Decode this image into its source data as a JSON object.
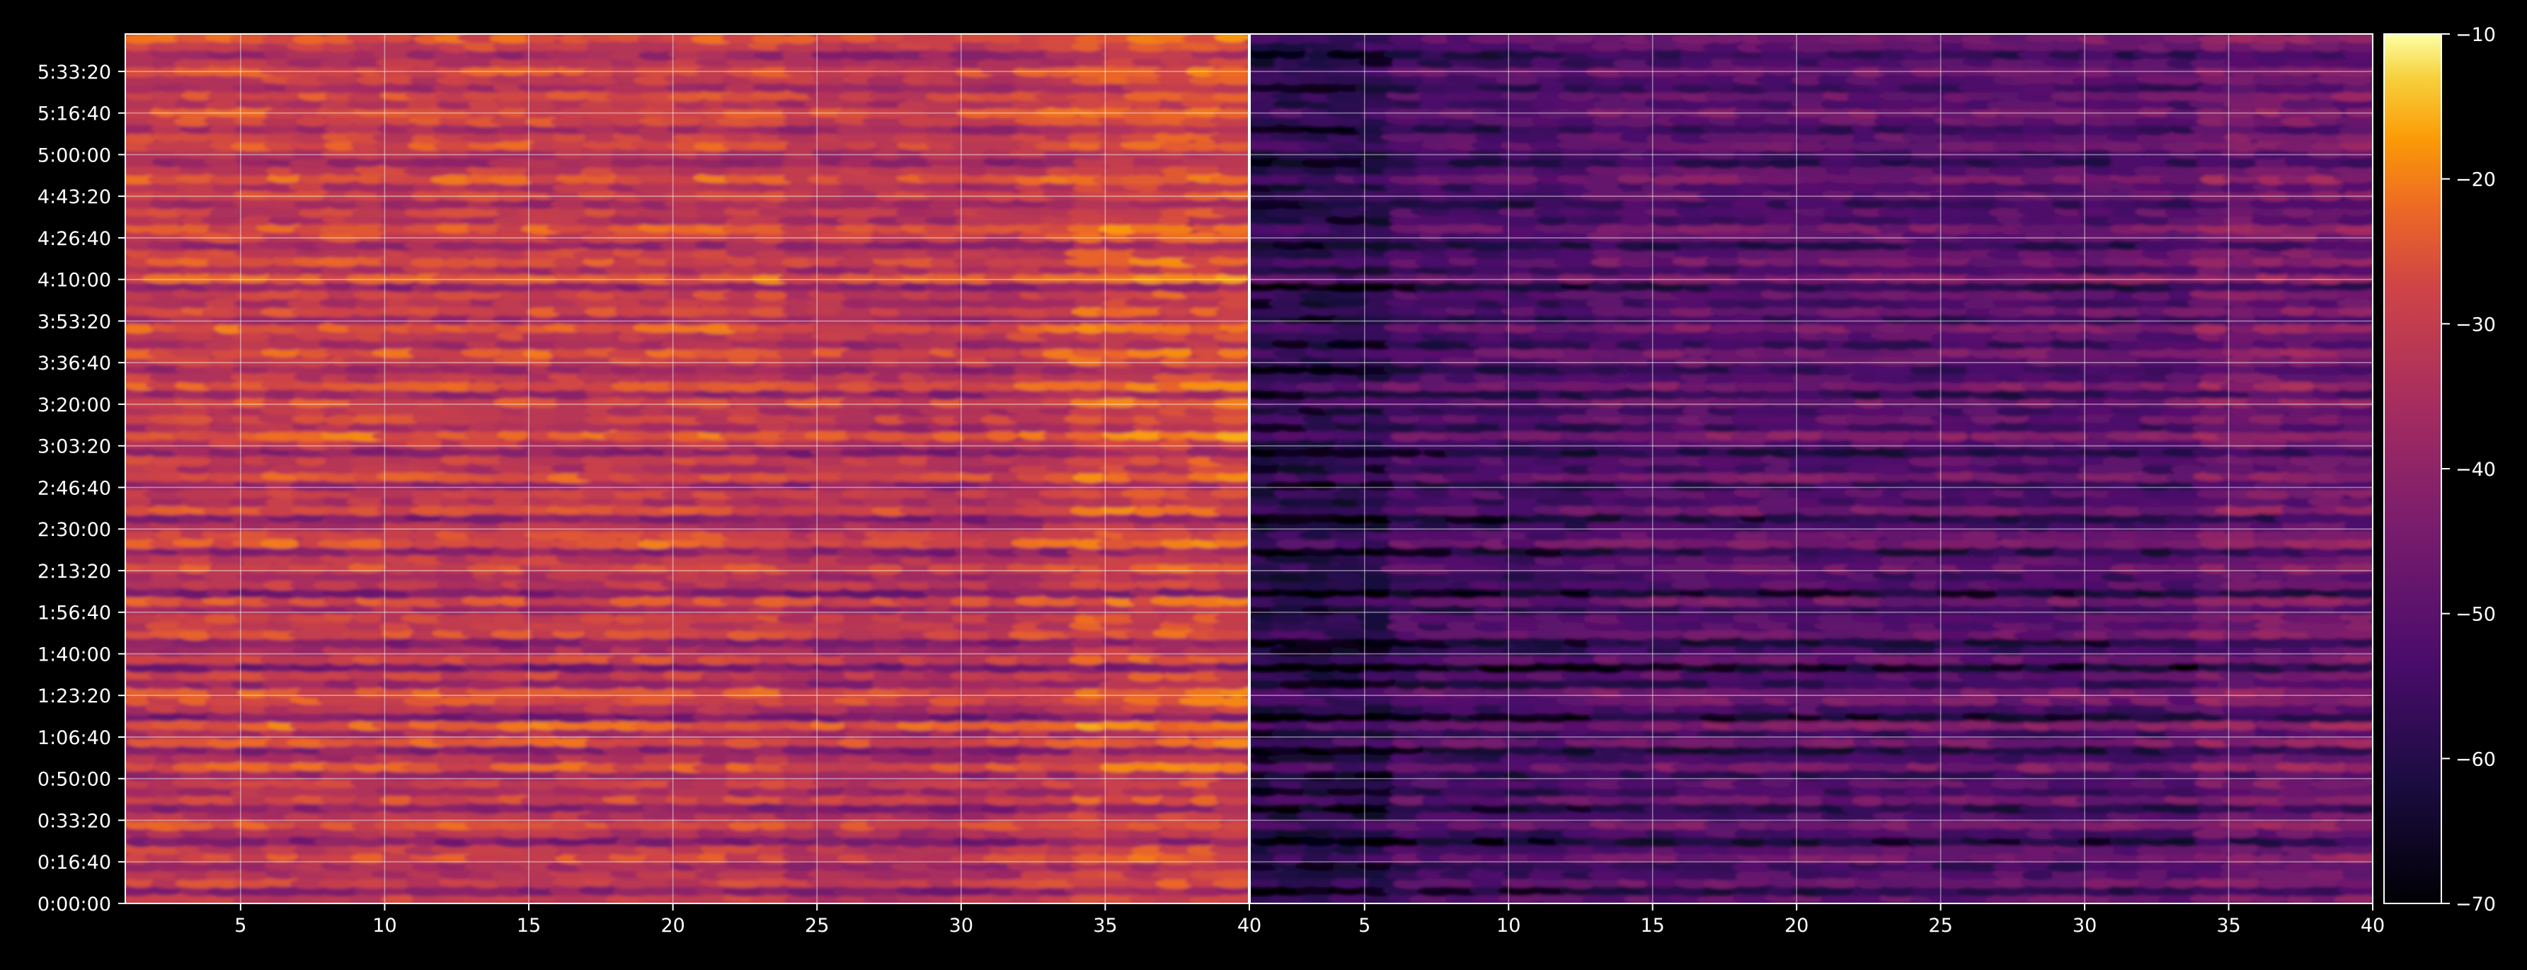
{
  "chart_data": {
    "type": "heatmap",
    "panels": [
      {
        "name": "left",
        "xlim": [
          1,
          40
        ],
        "xticks": [
          "5",
          "10",
          "15",
          "20",
          "25",
          "30",
          "35",
          "40"
        ],
        "tick_values": [
          5,
          10,
          15,
          20,
          25,
          30,
          35,
          40
        ],
        "mean_level_db": -31,
        "rows_db": [
          -30,
          -41,
          -29,
          -33,
          -36,
          -27,
          -30,
          -43,
          -34,
          -26,
          -33,
          -41,
          -28,
          -35,
          -30,
          -37,
          -25,
          -34,
          -41,
          -25,
          -35,
          -23,
          -44,
          -33,
          -26,
          -25,
          -38,
          -30,
          -45,
          -28,
          -35,
          -42,
          -27,
          -30,
          -29,
          -36,
          -26,
          -44,
          -31,
          -34,
          -27,
          -31,
          -40,
          -24,
          -28,
          -34,
          -42,
          -26,
          -33,
          -30,
          -38,
          -25,
          -33,
          -29,
          -40,
          -31,
          -23,
          -35,
          -28,
          -33,
          -26,
          -38,
          -24,
          -31,
          -37,
          -28,
          -25,
          -35,
          -30,
          -24,
          -36,
          -27,
          -33,
          -29,
          -40,
          -23,
          -34,
          -26,
          -30,
          -38,
          -28,
          -25,
          -33,
          -30,
          -36,
          -28,
          -33,
          -24,
          -30,
          -37,
          -33,
          -26,
          -29,
          -36,
          -28,
          -25,
          -32,
          -27,
          -35,
          -30,
          -26,
          -33,
          -37,
          -29,
          -25
        ]
      },
      {
        "name": "right",
        "xlim": [
          1,
          40
        ],
        "xticks": [
          "5",
          "10",
          "15",
          "20",
          "25",
          "30",
          "35",
          "40"
        ],
        "tick_values": [
          5,
          10,
          15,
          20,
          25,
          30,
          35,
          40
        ],
        "mean_level_db": -50,
        "rows_db": [
          -48,
          -60,
          -47,
          -52,
          -55,
          -46,
          -50,
          -63,
          -53,
          -45,
          -52,
          -60,
          -46,
          -55,
          -49,
          -57,
          -44,
          -54,
          -61,
          -45,
          -55,
          -43,
          -64,
          -53,
          -46,
          -45,
          -58,
          -50,
          -66,
          -48,
          -55,
          -62,
          -47,
          -50,
          -49,
          -56,
          -46,
          -64,
          -51,
          -54,
          -47,
          -51,
          -60,
          -44,
          -48,
          -54,
          -62,
          -46,
          -53,
          -50,
          -58,
          -45,
          -53,
          -49,
          -60,
          -51,
          -43,
          -55,
          -48,
          -53,
          -46,
          -58,
          -44,
          -51,
          -57,
          -48,
          -45,
          -55,
          -50,
          -44,
          -56,
          -47,
          -53,
          -49,
          -60,
          -43,
          -54,
          -46,
          -50,
          -58,
          -48,
          -45,
          -53,
          -50,
          -56,
          -48,
          -53,
          -44,
          -50,
          -57,
          -53,
          -46,
          -49,
          -56,
          -48,
          -45,
          -52,
          -47,
          -55,
          -50,
          -46,
          -53,
          -57,
          -49,
          -45
        ]
      }
    ],
    "yticks": [
      "0:00:00",
      "0:16:40",
      "0:33:20",
      "0:50:00",
      "1:06:40",
      "1:23:20",
      "1:40:00",
      "1:56:40",
      "2:13:20",
      "2:30:00",
      "2:46:40",
      "3:03:20",
      "3:20:00",
      "3:36:40",
      "3:53:20",
      "4:10:00",
      "4:26:40",
      "4:43:20",
      "5:00:00",
      "5:16:40",
      "5:33:20"
    ],
    "ylim_seconds": [
      0,
      20900
    ],
    "colorbar": {
      "colormap": "inferno",
      "range": [
        -70,
        -10
      ],
      "ticks": [
        "-10",
        "-20",
        "-30",
        "-40",
        "-50",
        "-60",
        "-70"
      ],
      "tick_values": [
        -10,
        -20,
        -30,
        -40,
        -50,
        -60,
        -70
      ]
    },
    "grid": true,
    "title": "",
    "xlabel": "",
    "ylabel": ""
  }
}
